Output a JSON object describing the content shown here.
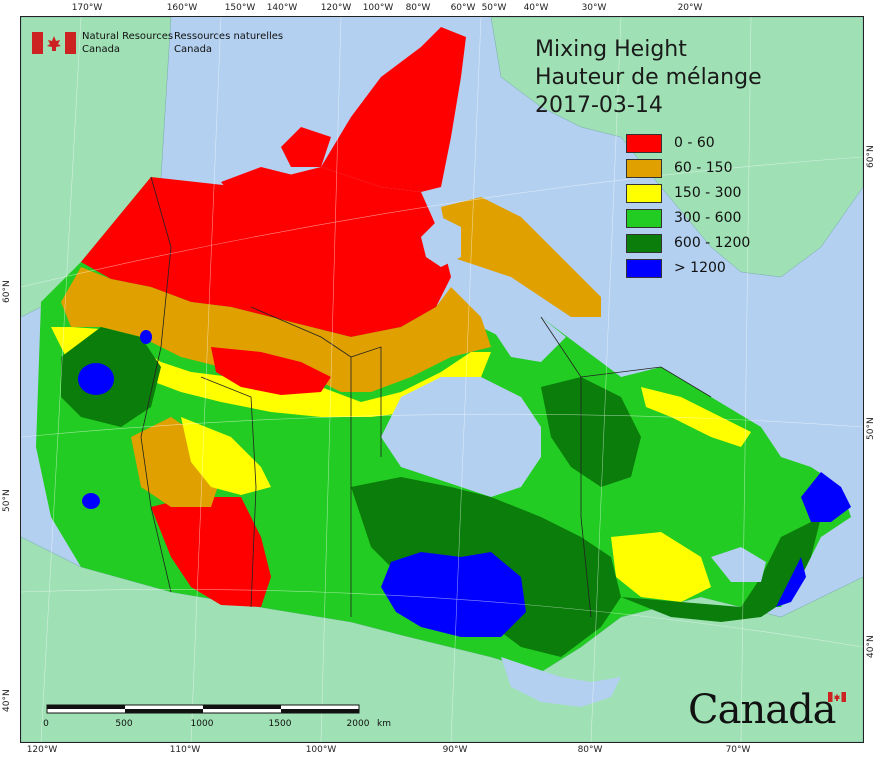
{
  "title": {
    "line1": "Mixing Height",
    "line2": "Hauteur de mélange",
    "date": "2017-03-14"
  },
  "legend": [
    {
      "label": "0 - 60",
      "color": "#ff0000"
    },
    {
      "label": "60 - 150",
      "color": "#e0a000"
    },
    {
      "label": "150 - 300",
      "color": "#ffff00"
    },
    {
      "label": "300 - 600",
      "color": "#22cc22"
    },
    {
      "label": "600 - 1200",
      "color": "#0a7d0a"
    },
    {
      "label": "> 1200",
      "color": "#0000ff"
    }
  ],
  "agency": {
    "en_line1": "Natural Resources",
    "en_line2": "Canada",
    "fr_line1": "Ressources naturelles",
    "fr_line2": "Canada"
  },
  "wordmark": "Canada",
  "scale_bar": {
    "labels": [
      "0",
      "500",
      "1000",
      "1500",
      "2000",
      "km"
    ]
  },
  "graticule": {
    "top": [
      "170°W",
      "160°W",
      "150°W",
      "140°W",
      "120°W",
      "100°W",
      "80°W",
      "60°W",
      "50°W",
      "40°W",
      "30°W",
      "20°W"
    ],
    "bottom": [
      "120°W",
      "110°W",
      "100°W",
      "90°W",
      "80°W",
      "70°W"
    ],
    "left": [
      "60°N",
      "50°N",
      "40°N"
    ],
    "right": [
      "60°N",
      "50°N",
      "40°N"
    ]
  },
  "colors": {
    "ocean": "#b3d0f0",
    "land_outside": "#9fe0b4",
    "border": "#222222"
  }
}
